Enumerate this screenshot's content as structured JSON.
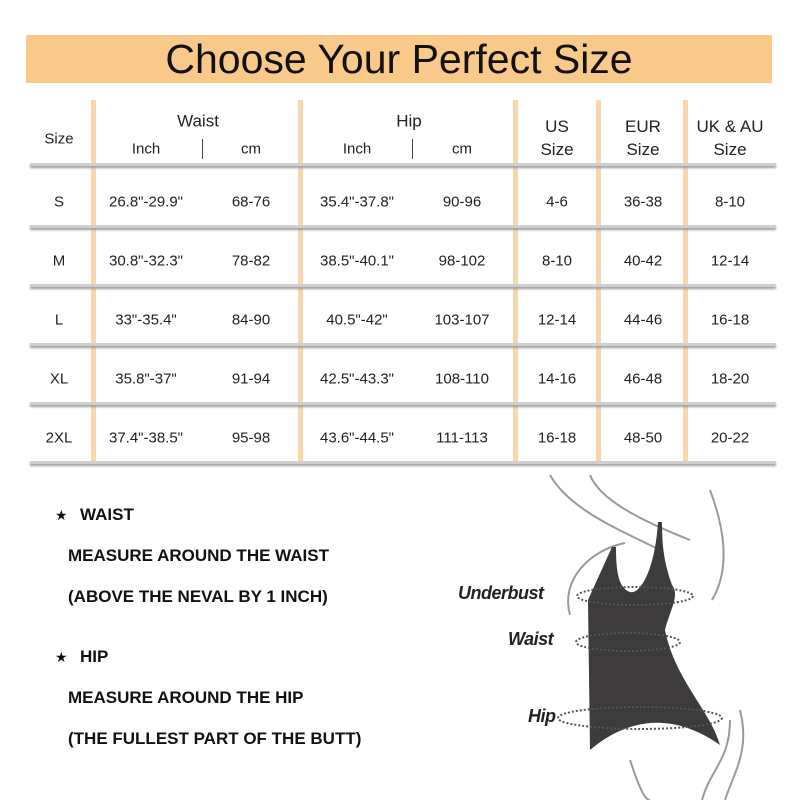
{
  "title": "Choose Your Perfect Size",
  "table": {
    "headers": {
      "size": "Size",
      "waist": "Waist",
      "hip": "Hip",
      "inch": "Inch",
      "cm": "cm",
      "us": [
        "US",
        "Size"
      ],
      "eur": [
        "EUR",
        "Size"
      ],
      "ukau": [
        "UK & AU",
        "Size"
      ]
    },
    "rows": [
      {
        "size": "S",
        "waist_in": "26.8\"-29.9\"",
        "waist_cm": "68-76",
        "hip_in": "35.4\"-37.8\"",
        "hip_cm": "90-96",
        "us": "4-6",
        "eur": "36-38",
        "ukau": "8-10"
      },
      {
        "size": "M",
        "waist_in": "30.8\"-32.3\"",
        "waist_cm": "78-82",
        "hip_in": "38.5\"-40.1\"",
        "hip_cm": "98-102",
        "us": "8-10",
        "eur": "40-42",
        "ukau": "12-14"
      },
      {
        "size": "L",
        "waist_in": "33\"-35.4\"",
        "waist_cm": "84-90",
        "hip_in": "40.5\"-42\"",
        "hip_cm": "103-107",
        "us": "12-14",
        "eur": "44-46",
        "ukau": "16-18"
      },
      {
        "size": "XL",
        "waist_in": "35.8\"-37\"",
        "waist_cm": "91-94",
        "hip_in": "42.5\"-43.3\"",
        "hip_cm": "108-110",
        "us": "14-16",
        "eur": "46-48",
        "ukau": "18-20"
      },
      {
        "size": "2XL",
        "waist_in": "37.4\"-38.5\"",
        "waist_cm": "95-98",
        "hip_in": "43.6\"-44.5\"",
        "hip_cm": "111-113",
        "us": "16-18",
        "eur": "48-50",
        "ukau": "20-22"
      }
    ]
  },
  "instructions": {
    "waist_title": "WAIST",
    "waist_line1": "MEASURE AROUND THE WAIST",
    "waist_line2": "(ABOVE THE NEVAL BY 1 INCH)",
    "hip_title": "HIP",
    "hip_line1": "MEASURE AROUND THE HIP",
    "hip_line2": "(THE FULLEST PART OF THE BUTT)",
    "bullet_icon": "star-icon"
  },
  "figure": {
    "underbust": "Underbust",
    "waist": "Waist",
    "hip": "Hip"
  },
  "colors": {
    "banner": "#f9c98a",
    "column_bar": "#f9d7aa",
    "garment": "#3d3b3c"
  }
}
